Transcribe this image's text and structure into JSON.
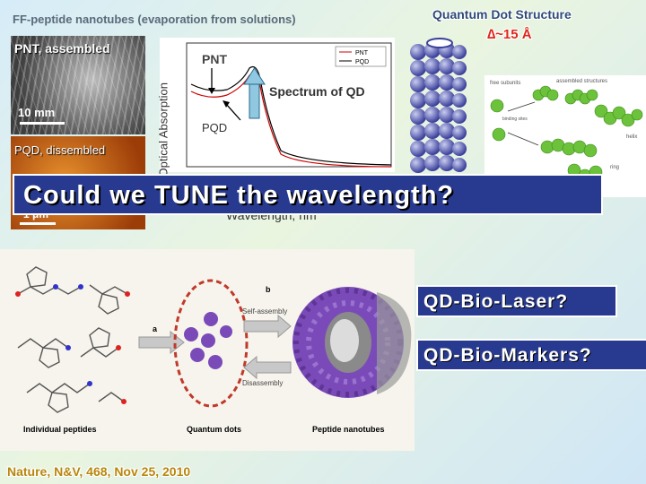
{
  "top_caption": "FF-peptide nanotubes (evaporation from solutions)",
  "quantum_dot": {
    "title": "Quantum Dot Structure",
    "size_label": "∆~15 Å"
  },
  "photo_pnt": {
    "label": "PNT, assembled",
    "scale": "10 mm"
  },
  "photo_pqd": {
    "label": "PQD, dissembled",
    "scale": "1 μm"
  },
  "spectrum": {
    "y_label": "Optical Absorption",
    "x_label": "Wavelength, nm",
    "legend": [
      "PNT",
      "PQD"
    ],
    "annotation_pnt": "PNT",
    "annotation_pqd": "PQD",
    "annotation_spectrum": "Spectrum of QD"
  },
  "protein_labels": {
    "free_subunits": "free subunits",
    "assembled": "assembled structures",
    "binding_sites": "binding sites",
    "helix": "helix",
    "ring": "ring"
  },
  "banner": "Could we TUNE the wavelength?",
  "scheme": {
    "step_a": "a",
    "step_b": "b",
    "self_assembly": "Self-assembly",
    "disassembly": "Disassembly",
    "individual": "Individual peptides",
    "quantum_dots": "Quantum dots",
    "nanotubes": "Peptide nanotubes"
  },
  "box_laser": "QD-Bio-Laser?",
  "box_markers": "QD-Bio-Markers?",
  "citation": "Nature, N&V, 468, Nov 25, 2010",
  "colors": {
    "banner": "#283a8f",
    "accent_red": "#e0261b",
    "citation": "#b8860b",
    "purple": "#7a4bb8"
  }
}
